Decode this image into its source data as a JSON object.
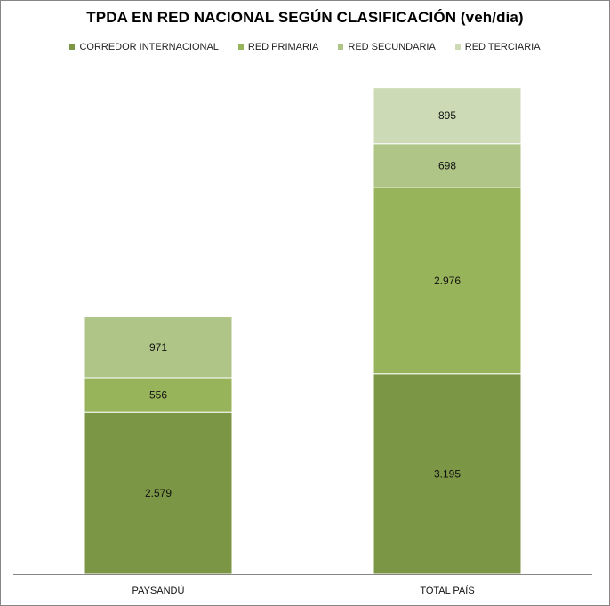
{
  "chart_data": {
    "type": "bar",
    "stacked": true,
    "title": "TPDA EN RED NACIONAL SEGÚN CLASIFICACIÓN (veh/día)",
    "categories": [
      "PAYSANDÚ",
      "TOTAL PAÍS"
    ],
    "series": [
      {
        "name": "CORREDOR INTERNACIONAL",
        "color": "#7b9645",
        "values": [
          2579,
          3195
        ],
        "labels": [
          "2.579",
          "3.195"
        ]
      },
      {
        "name": "RED PRIMARIA",
        "color": "#98b45a",
        "values": [
          556,
          2976
        ],
        "labels": [
          "556",
          "2.976"
        ]
      },
      {
        "name": "RED SECUNDARIA",
        "color": "#afc587",
        "values": [
          971,
          698
        ],
        "labels": [
          "971",
          "698"
        ]
      },
      {
        "name": "RED TERCIARIA",
        "color": "#ccdbb5",
        "values": [
          0,
          895
        ],
        "labels": [
          "",
          "895"
        ]
      }
    ],
    "ylim": [
      0,
      8000
    ],
    "legend_position": "top",
    "grid": false
  }
}
